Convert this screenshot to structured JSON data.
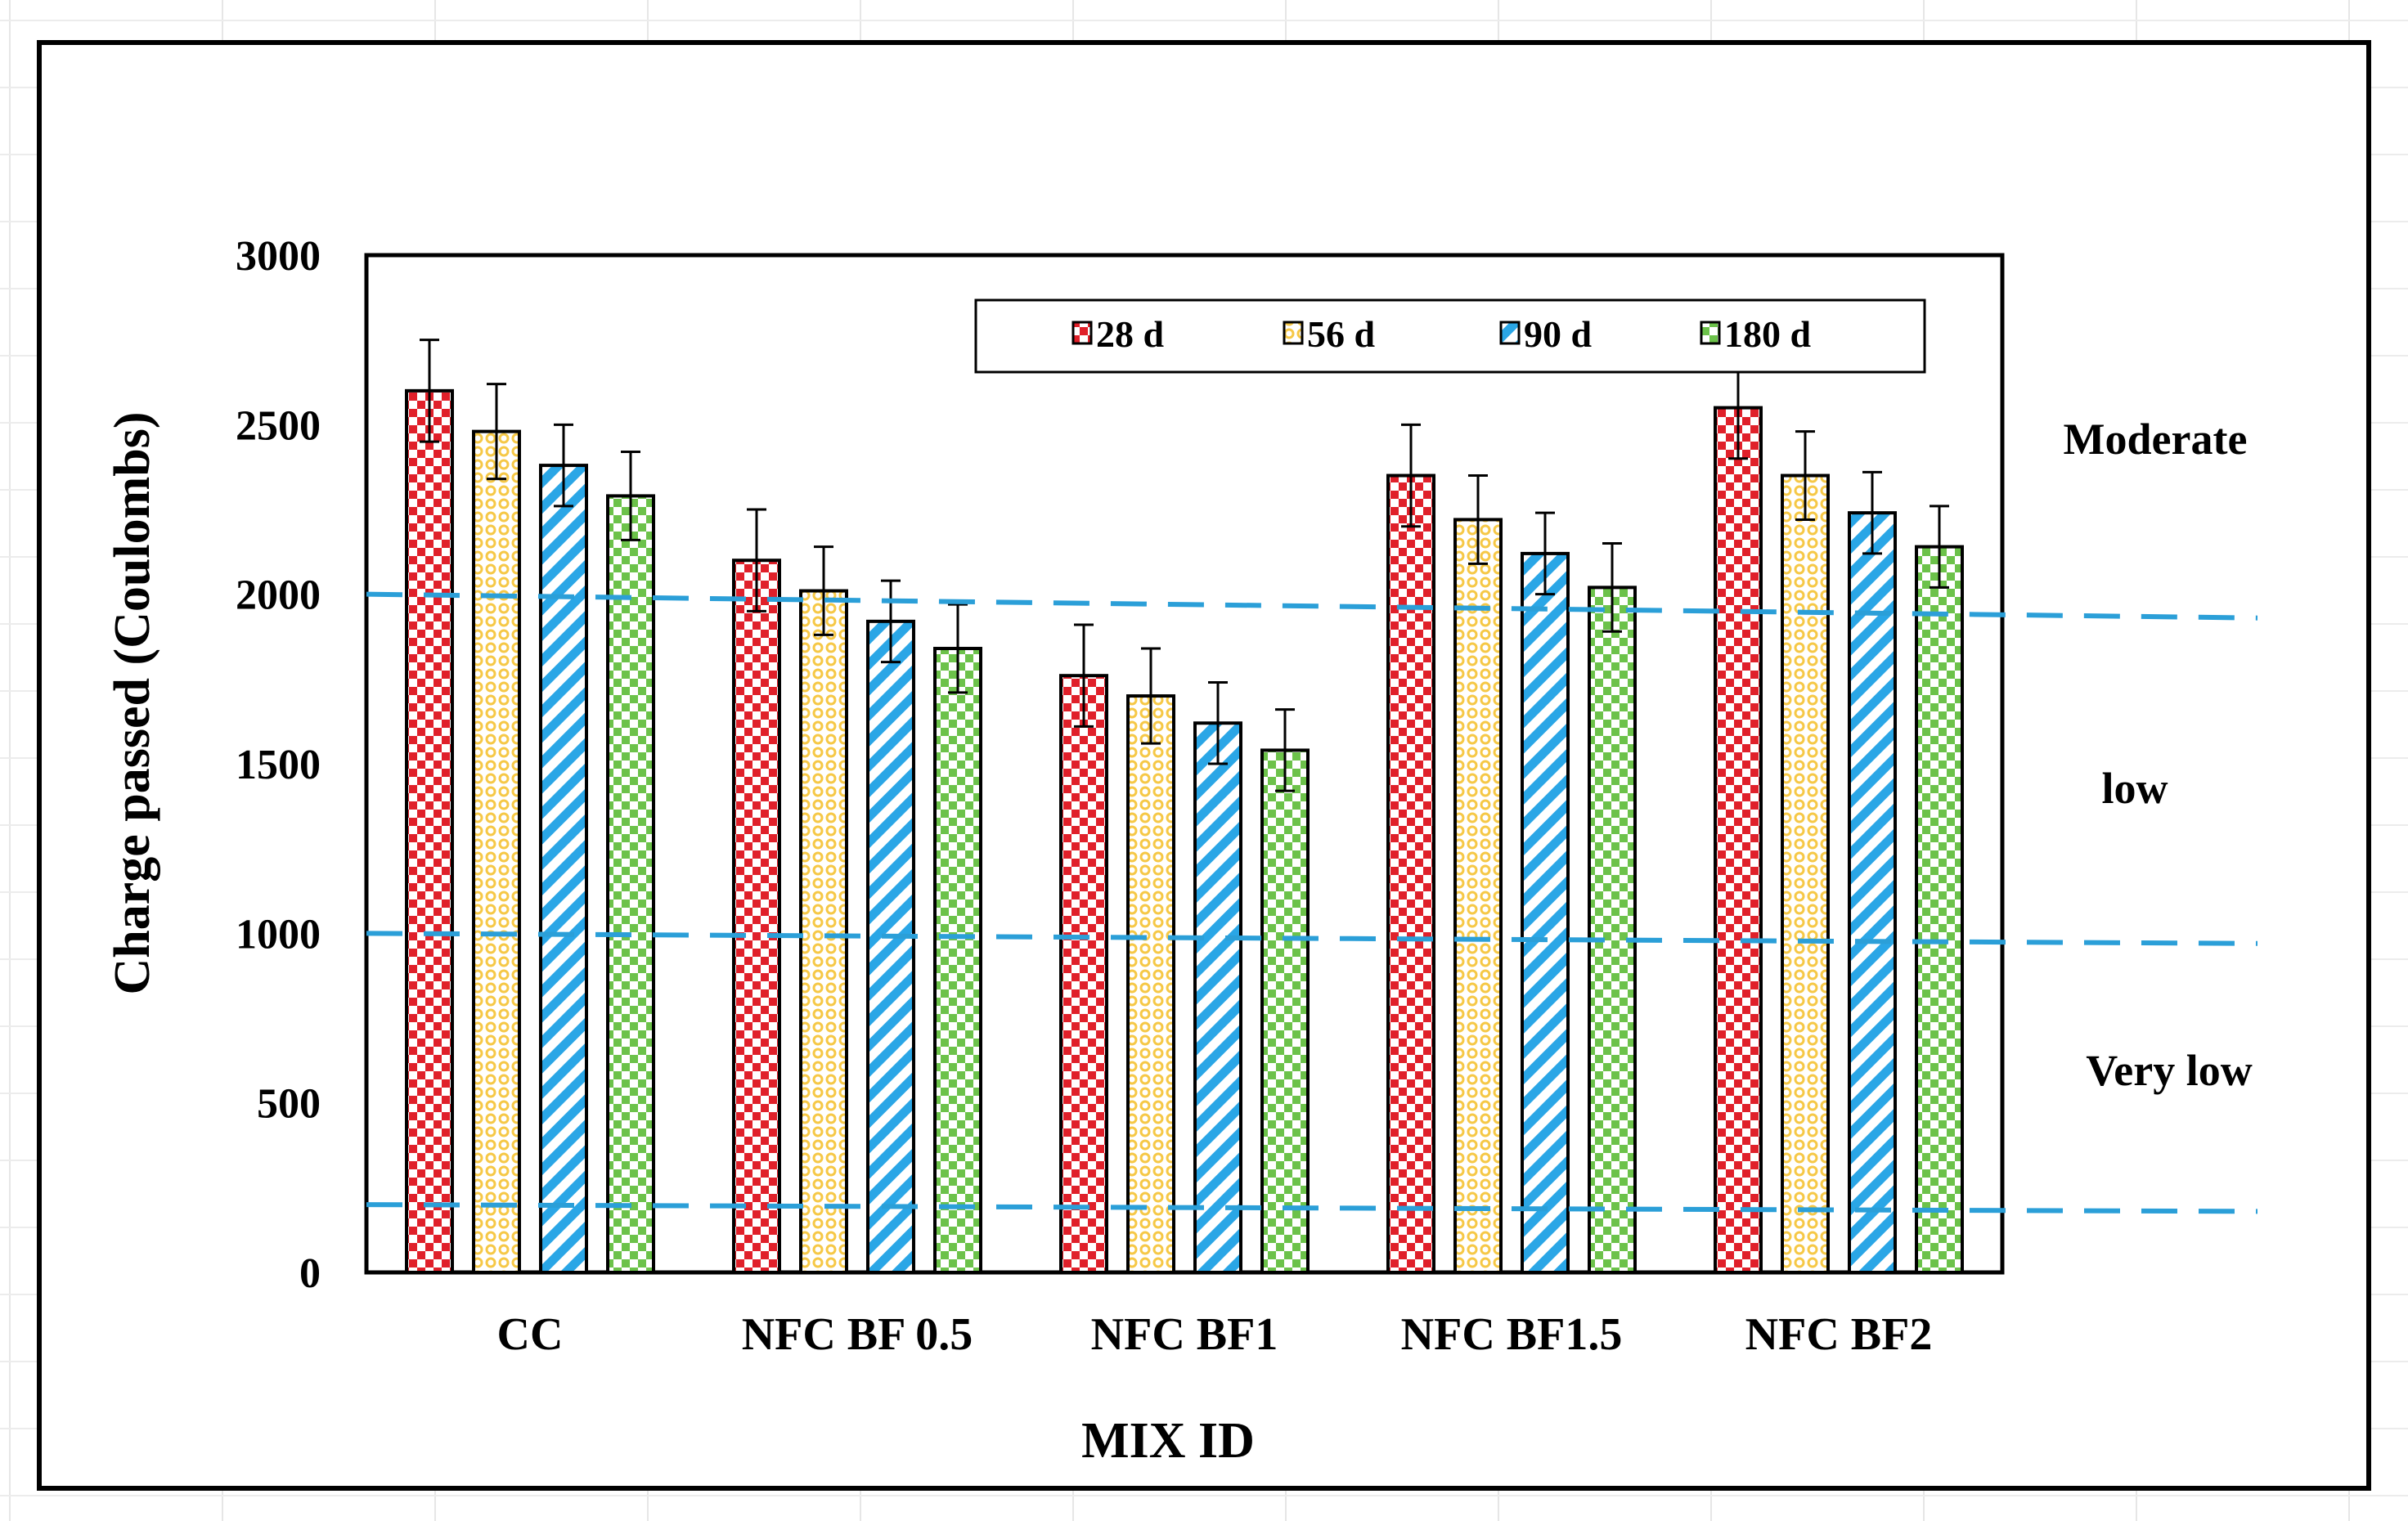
{
  "chart_data": {
    "type": "bar",
    "title": "",
    "xlabel": "MIX ID",
    "ylabel": "Charge passed (Coulombs)",
    "ylim": [
      0,
      3000
    ],
    "yticks": [
      0,
      500,
      1000,
      1500,
      2000,
      2500,
      3000
    ],
    "ytick_labels": [
      "0",
      "500",
      "1000",
      "1500",
      "2000",
      "2500",
      "3000"
    ],
    "categories": [
      "CC",
      "NFC BF 0.5",
      "NFC BF1",
      "NFC BF1.5",
      "NFC BF2"
    ],
    "series": [
      {
        "name": "28 d",
        "color": "#e0202a",
        "pattern": "checker",
        "values": [
          2600,
          2100,
          1760,
          2350,
          2550
        ],
        "errors": [
          150,
          150,
          150,
          150,
          150
        ]
      },
      {
        "name": "56 d",
        "color": "#f6c846",
        "pattern": "rings",
        "values": [
          2480,
          2010,
          1700,
          2220,
          2350
        ],
        "errors": [
          140,
          130,
          140,
          130,
          130
        ]
      },
      {
        "name": "90 d",
        "color": "#2aa6e6",
        "pattern": "stripes",
        "values": [
          2380,
          1920,
          1620,
          2120,
          2240
        ],
        "errors": [
          120,
          120,
          120,
          120,
          120
        ]
      },
      {
        "name": "180 d",
        "color": "#6cc24a",
        "pattern": "checker",
        "values": [
          2290,
          1840,
          1540,
          2020,
          2140
        ],
        "errors": [
          130,
          130,
          120,
          130,
          120
        ]
      }
    ],
    "reference_lines": [
      {
        "label": "Moderate / low boundary",
        "values": [
          2000,
          1930
        ]
      },
      {
        "label": "low / Very low boundary",
        "values": [
          1000,
          970
        ]
      },
      {
        "label": "Very low / Negligible boundary",
        "values": [
          200,
          180
        ]
      }
    ],
    "band_labels": [
      "Moderate",
      "low",
      "Very low"
    ],
    "legend_position": "top-right"
  }
}
